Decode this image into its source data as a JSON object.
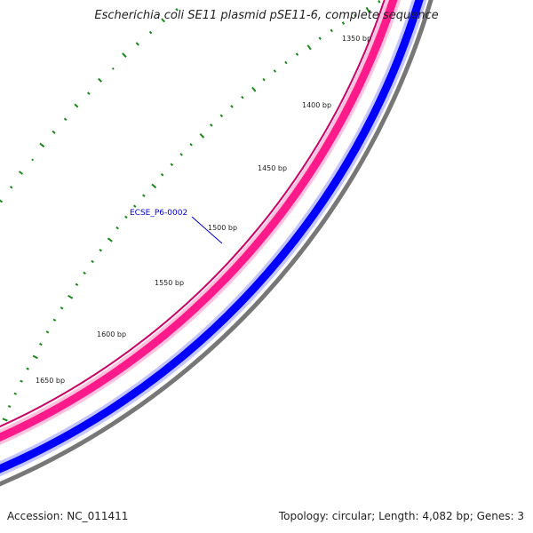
{
  "map": {
    "title": "Escherichia coli SE11 plasmid pSE11-6, complete sequence",
    "accession": "Accession: NC_011411",
    "summary": "Topology: circular; Length: 4,082 bp; Genes: 3",
    "sequence_length_bp": 4082,
    "tick_labels": [
      "1350 bp",
      "1400 bp",
      "1450 bp",
      "1500 bp",
      "1550 bp",
      "1600 bp",
      "1650 bp"
    ],
    "gene_label": "ECSE_P6-0002",
    "colors": {
      "forward_track": "#ff1a8c",
      "forward_track_light": "#ffc2de",
      "reverse_track": "#0000ff",
      "reverse_track_light": "#c4c4ff",
      "backbone": "#777777",
      "gc_marks": "#1a8a1a",
      "gene_label": "#0000cc",
      "ticks": "#1a8a1a"
    }
  }
}
